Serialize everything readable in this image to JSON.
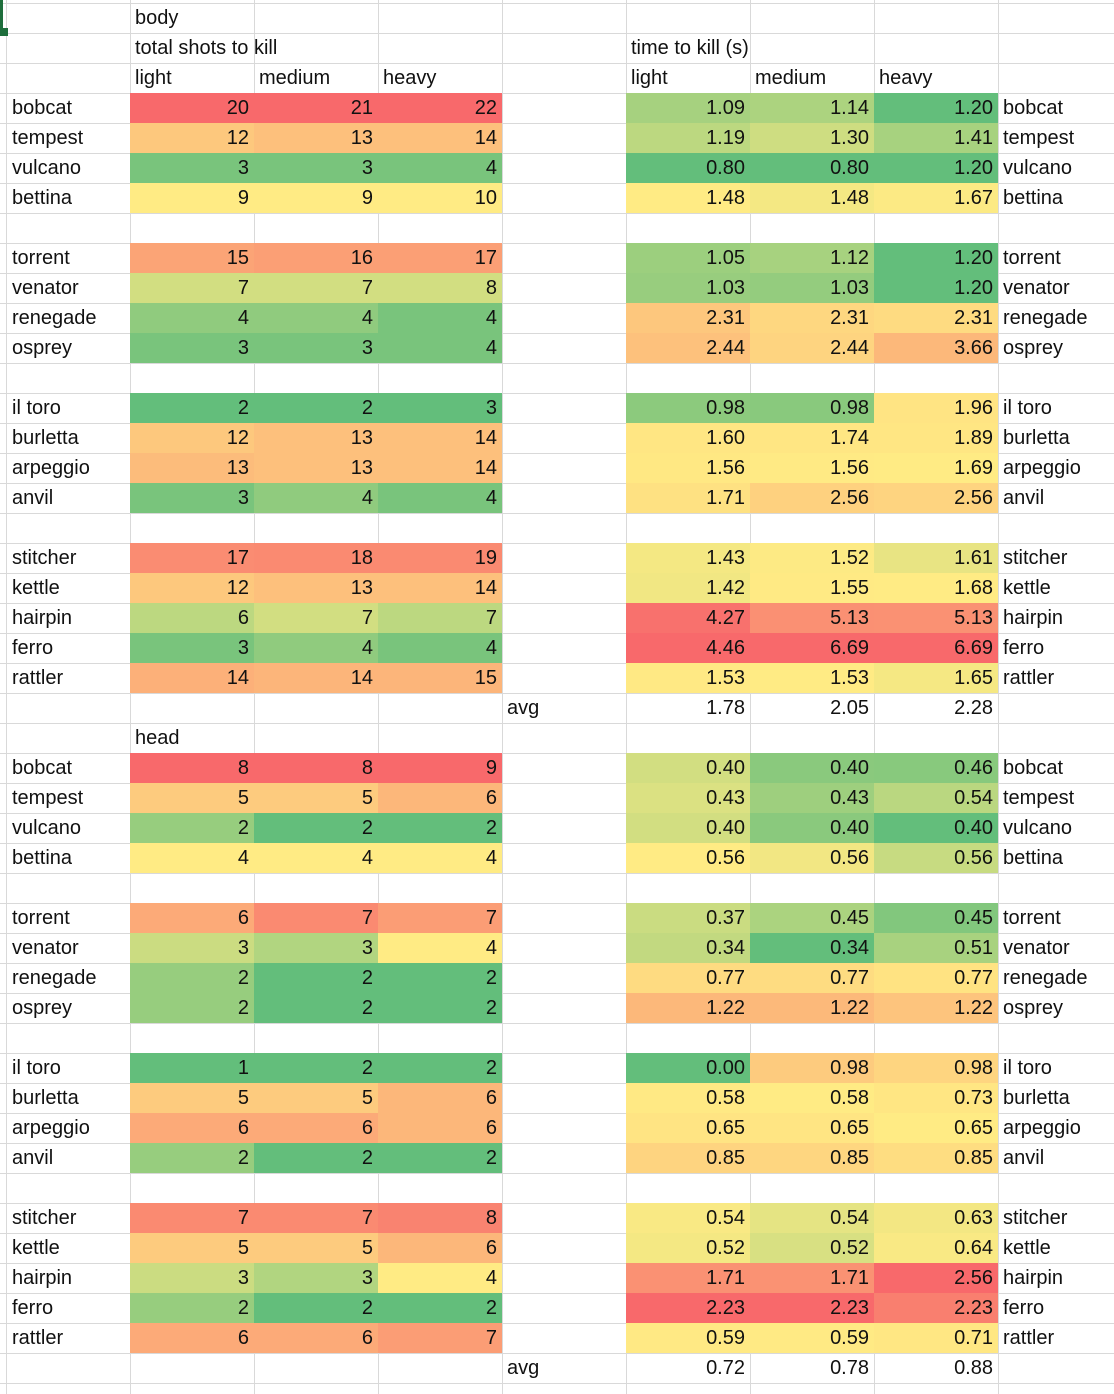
{
  "sheet": {
    "body": {
      "title": "body",
      "shots_header": "total shots to kill",
      "time_header": "time to kill (s)",
      "columns": [
        "light",
        "medium",
        "heavy"
      ],
      "groups": [
        [
          {
            "name": "bobcat",
            "shots": [
              20,
              21,
              22
            ],
            "time": [
              "1.09",
              "1.14",
              "1.20"
            ]
          },
          {
            "name": "tempest",
            "shots": [
              12,
              13,
              14
            ],
            "time": [
              "1.19",
              "1.30",
              "1.41"
            ]
          },
          {
            "name": "vulcano",
            "shots": [
              3,
              3,
              4
            ],
            "time": [
              "0.80",
              "0.80",
              "1.20"
            ]
          },
          {
            "name": "bettina",
            "shots": [
              9,
              9,
              10
            ],
            "time": [
              "1.48",
              "1.48",
              "1.67"
            ]
          }
        ],
        [
          {
            "name": "torrent",
            "shots": [
              15,
              16,
              17
            ],
            "time": [
              "1.05",
              "1.12",
              "1.20"
            ]
          },
          {
            "name": "venator",
            "shots": [
              7,
              7,
              8
            ],
            "time": [
              "1.03",
              "1.03",
              "1.20"
            ]
          },
          {
            "name": "renegade",
            "shots": [
              4,
              4,
              4
            ],
            "time": [
              "2.31",
              "2.31",
              "2.31"
            ]
          },
          {
            "name": "osprey",
            "shots": [
              3,
              3,
              4
            ],
            "time": [
              "2.44",
              "2.44",
              "3.66"
            ]
          }
        ],
        [
          {
            "name": "il toro",
            "shots": [
              2,
              2,
              3
            ],
            "time": [
              "0.98",
              "0.98",
              "1.96"
            ]
          },
          {
            "name": "burletta",
            "shots": [
              12,
              13,
              14
            ],
            "time": [
              "1.60",
              "1.74",
              "1.89"
            ]
          },
          {
            "name": "arpeggio",
            "shots": [
              13,
              13,
              14
            ],
            "time": [
              "1.56",
              "1.56",
              "1.69"
            ]
          },
          {
            "name": "anvil",
            "shots": [
              3,
              4,
              4
            ],
            "time": [
              "1.71",
              "2.56",
              "2.56"
            ]
          }
        ],
        [
          {
            "name": "stitcher",
            "shots": [
              17,
              18,
              19
            ],
            "time": [
              "1.43",
              "1.52",
              "1.61"
            ]
          },
          {
            "name": "kettle",
            "shots": [
              12,
              13,
              14
            ],
            "time": [
              "1.42",
              "1.55",
              "1.68"
            ]
          },
          {
            "name": "hairpin",
            "shots": [
              6,
              7,
              7
            ],
            "time": [
              "4.27",
              "5.13",
              "5.13"
            ]
          },
          {
            "name": "ferro",
            "shots": [
              3,
              4,
              4
            ],
            "time": [
              "4.46",
              "6.69",
              "6.69"
            ]
          },
          {
            "name": "rattler",
            "shots": [
              14,
              14,
              15
            ],
            "time": [
              "1.53",
              "1.53",
              "1.65"
            ]
          }
        ]
      ],
      "avg_label": "avg",
      "avg": [
        "1.78",
        "2.05",
        "2.28"
      ]
    },
    "head": {
      "title": "head",
      "groups": [
        [
          {
            "name": "bobcat",
            "shots": [
              8,
              8,
              9
            ],
            "time": [
              "0.40",
              "0.40",
              "0.46"
            ]
          },
          {
            "name": "tempest",
            "shots": [
              5,
              5,
              6
            ],
            "time": [
              "0.43",
              "0.43",
              "0.54"
            ]
          },
          {
            "name": "vulcano",
            "shots": [
              2,
              2,
              2
            ],
            "time": [
              "0.40",
              "0.40",
              "0.40"
            ]
          },
          {
            "name": "bettina",
            "shots": [
              4,
              4,
              4
            ],
            "time": [
              "0.56",
              "0.56",
              "0.56"
            ]
          }
        ],
        [
          {
            "name": "torrent",
            "shots": [
              6,
              7,
              7
            ],
            "time": [
              "0.37",
              "0.45",
              "0.45"
            ]
          },
          {
            "name": "venator",
            "shots": [
              3,
              3,
              4
            ],
            "time": [
              "0.34",
              "0.34",
              "0.51"
            ]
          },
          {
            "name": "renegade",
            "shots": [
              2,
              2,
              2
            ],
            "time": [
              "0.77",
              "0.77",
              "0.77"
            ]
          },
          {
            "name": "osprey",
            "shots": [
              2,
              2,
              2
            ],
            "time": [
              "1.22",
              "1.22",
              "1.22"
            ]
          }
        ],
        [
          {
            "name": "il toro",
            "shots": [
              1,
              2,
              2
            ],
            "time": [
              "0.00",
              "0.98",
              "0.98"
            ]
          },
          {
            "name": "burletta",
            "shots": [
              5,
              5,
              6
            ],
            "time": [
              "0.58",
              "0.58",
              "0.73"
            ]
          },
          {
            "name": "arpeggio",
            "shots": [
              6,
              6,
              6
            ],
            "time": [
              "0.65",
              "0.65",
              "0.65"
            ]
          },
          {
            "name": "anvil",
            "shots": [
              2,
              2,
              2
            ],
            "time": [
              "0.85",
              "0.85",
              "0.85"
            ]
          }
        ],
        [
          {
            "name": "stitcher",
            "shots": [
              7,
              7,
              8
            ],
            "time": [
              "0.54",
              "0.54",
              "0.63"
            ]
          },
          {
            "name": "kettle",
            "shots": [
              5,
              5,
              6
            ],
            "time": [
              "0.52",
              "0.52",
              "0.64"
            ]
          },
          {
            "name": "hairpin",
            "shots": [
              3,
              3,
              4
            ],
            "time": [
              "1.71",
              "1.71",
              "2.56"
            ]
          },
          {
            "name": "ferro",
            "shots": [
              2,
              2,
              2
            ],
            "time": [
              "2.23",
              "2.23",
              "2.23"
            ]
          },
          {
            "name": "rattler",
            "shots": [
              6,
              6,
              7
            ],
            "time": [
              "0.59",
              "0.59",
              "0.71"
            ]
          }
        ]
      ],
      "avg_label": "avg",
      "avg": [
        "0.72",
        "0.78",
        "0.88"
      ]
    }
  }
}
